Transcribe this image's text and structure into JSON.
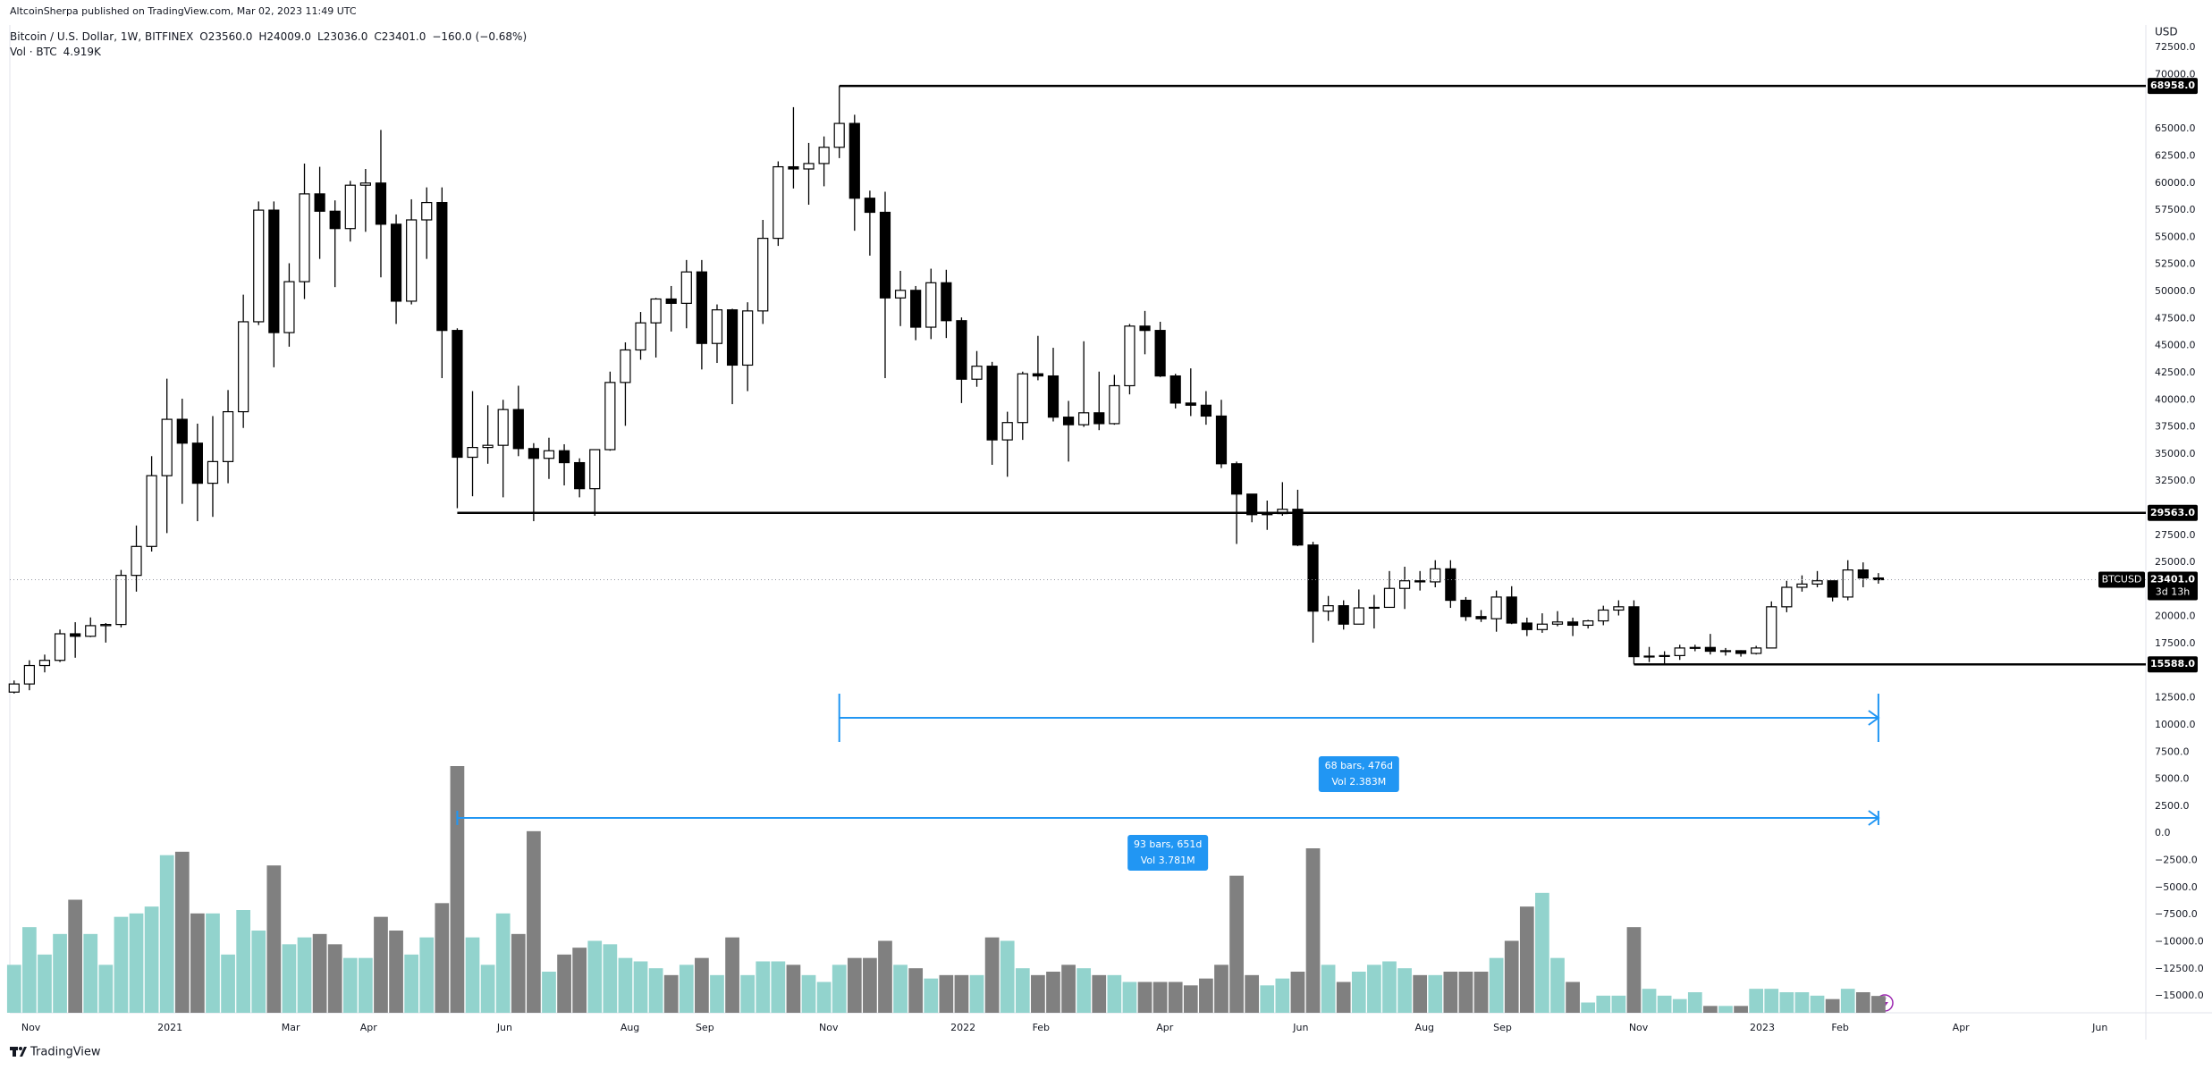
{
  "header": {
    "publisher": "AltcoinSherpa published on TradingView.com, Mar 02, 2023 11:49 UTC",
    "title": "Bitcoin / U.S. Dollar, 1W, BITFINEX",
    "ohlc_labels": [
      "O23560.0",
      "H24009.0",
      "L23036.0",
      "C23401.0",
      "−160.0 (−0.68%)"
    ],
    "volume_title": "Vol · BTC",
    "volume_label": "4.919K"
  },
  "chart_data": {
    "type": "candlestick",
    "symbol": "BTCUSD",
    "currency": "USD",
    "open": [
      13030,
      13780,
      15480,
      15960,
      18410,
      18180,
      19160,
      19270,
      23800,
      26470,
      33000,
      38200,
      36000,
      32300,
      34300,
      38900,
      47200,
      57500,
      46200,
      50900,
      59000,
      57400,
      55800,
      59800,
      60000,
      56200,
      49100,
      56600,
      58200,
      46400,
      34700,
      35600,
      35800,
      39100,
      35500,
      34600,
      35300,
      34200,
      31800,
      35400,
      41600,
      44600,
      47100,
      49300,
      48900,
      51800,
      45200,
      48300,
      43200,
      48200,
      54900,
      61500,
      61300,
      61800,
      63300,
      65500,
      58600,
      57300,
      49400,
      50100,
      46700,
      50800,
      47300,
      41900,
      43100,
      36300,
      37900,
      42400,
      42200,
      38400,
      37700,
      38800,
      37800,
      41300,
      46800,
      46400,
      42200,
      39700,
      39500,
      38500,
      34100,
      31300,
      29400,
      29500,
      29900,
      26600,
      20500,
      21000,
      19300,
      20800,
      20850,
      22600,
      23300,
      23200,
      24400,
      21500,
      20000,
      19800,
      21800,
      19400,
      18800,
      19300,
      19500,
      19200,
      19600,
      20600,
      20900,
      16300,
      16350,
      16400,
      17100,
      17150,
      16800,
      16850,
      16600,
      17100,
      20900,
      22700,
      23000,
      23300,
      21800,
      24300,
      23560
    ],
    "high": [
      14100,
      15970,
      16490,
      18800,
      19480,
      19920,
      19400,
      24300,
      28400,
      34800,
      41950,
      40100,
      37800,
      38500,
      40900,
      49700,
      58300,
      58300,
      52600,
      61800,
      61500,
      58400,
      60200,
      61300,
      64900,
      57100,
      58500,
      59600,
      59600,
      46600,
      40800,
      39500,
      40000,
      41300,
      36000,
      36500,
      35900,
      34600,
      35400,
      42600,
      45300,
      48100,
      49400,
      50500,
      52900,
      52900,
      48800,
      48400,
      49000,
      56600,
      62000,
      67000,
      63700,
      64300,
      68958,
      66300,
      59300,
      59200,
      51900,
      50500,
      52100,
      52000,
      47600,
      44500,
      43500,
      38900,
      42600,
      45900,
      44800,
      39900,
      45400,
      42600,
      42300,
      47000,
      48200,
      47200,
      42400,
      42900,
      40800,
      40000,
      34300,
      31300,
      30700,
      32400,
      31700,
      26900,
      21900,
      21500,
      22500,
      22000,
      24200,
      24600,
      24200,
      25200,
      25200,
      21800,
      20600,
      22400,
      22800,
      19900,
      20300,
      20500,
      19900,
      19700,
      21000,
      21500,
      21500,
      17200,
      16800,
      17400,
      17400,
      18400,
      17100,
      16900,
      17300,
      21400,
      23300,
      23800,
      24200,
      23300,
      25200,
      25000,
      24009
    ],
    "low": [
      12900,
      13200,
      14850,
      15800,
      16200,
      18100,
      17600,
      19000,
      22300,
      26000,
      27700,
      30400,
      28800,
      29200,
      32300,
      37400,
      46900,
      43000,
      44900,
      49300,
      53000,
      50400,
      54600,
      55500,
      51300,
      47000,
      48800,
      53000,
      42000,
      30000,
      31100,
      34100,
      31000,
      34800,
      28800,
      32700,
      32100,
      31000,
      29300,
      35300,
      37600,
      43700,
      43900,
      46300,
      46600,
      42800,
      43400,
      39600,
      40800,
      47000,
      54200,
      59500,
      58000,
      59700,
      62300,
      55600,
      53300,
      42000,
      46800,
      45500,
      45600,
      45700,
      39700,
      41200,
      34000,
      32900,
      36300,
      41800,
      38000,
      34300,
      37500,
      37200,
      37700,
      40500,
      44200,
      42100,
      39200,
      38500,
      37700,
      33700,
      26700,
      28700,
      28000,
      29300,
      26500,
      17600,
      19600,
      18800,
      19300,
      18900,
      20800,
      20700,
      22400,
      22700,
      20800,
      19600,
      19500,
      18600,
      19300,
      18200,
      18500,
      19100,
      18200,
      18900,
      19200,
      20100,
      15588,
      15800,
      15600,
      16000,
      16800,
      16500,
      16400,
      16300,
      16500,
      17100,
      20400,
      22300,
      22700,
      21400,
      21500,
      22700,
      23036
    ],
    "close": [
      13780,
      15480,
      15960,
      18410,
      18180,
      19160,
      19270,
      23800,
      26470,
      33000,
      38200,
      36000,
      32300,
      34300,
      38900,
      47200,
      57500,
      46200,
      50900,
      59000,
      57400,
      55800,
      59800,
      60000,
      56200,
      49100,
      56600,
      58200,
      46400,
      34700,
      35600,
      35800,
      39100,
      35500,
      34600,
      35300,
      34200,
      31800,
      35400,
      41600,
      44600,
      47100,
      49300,
      48900,
      51800,
      45200,
      48300,
      43200,
      48200,
      54900,
      61500,
      61300,
      61800,
      63300,
      65500,
      58600,
      57300,
      49400,
      50100,
      46700,
      50800,
      47300,
      41900,
      43100,
      36300,
      37900,
      42400,
      42200,
      38400,
      37700,
      38800,
      37800,
      41300,
      46800,
      46400,
      42200,
      39700,
      39500,
      38500,
      34100,
      31300,
      29400,
      29500,
      29900,
      26600,
      20500,
      21000,
      19300,
      20800,
      20850,
      22600,
      23300,
      23200,
      24400,
      21500,
      20000,
      19800,
      21800,
      19400,
      18800,
      19300,
      19500,
      19200,
      19600,
      20600,
      20900,
      16300,
      16350,
      16400,
      17100,
      17150,
      16800,
      16850,
      16600,
      17100,
      20900,
      22700,
      23000,
      23300,
      21800,
      24300,
      23560,
      23401
    ],
    "volume": [
      14000,
      25000,
      17000,
      23000,
      33000,
      23000,
      14000,
      28000,
      29000,
      31000,
      46000,
      47000,
      29000,
      29000,
      17000,
      30000,
      24000,
      43000,
      20000,
      22000,
      23000,
      20000,
      16000,
      16000,
      28000,
      24000,
      17000,
      22000,
      32000,
      72000,
      22000,
      14000,
      29000,
      23000,
      53000,
      12000,
      17000,
      19000,
      21000,
      20000,
      16000,
      15000,
      13000,
      11000,
      14000,
      16000,
      11000,
      22000,
      11000,
      15000,
      15000,
      14000,
      11000,
      9000,
      14000,
      16000,
      16000,
      21000,
      14000,
      13000,
      10000,
      11000,
      11000,
      11000,
      22000,
      21000,
      13000,
      11000,
      12000,
      14000,
      13000,
      11000,
      11000,
      9000,
      9000,
      9000,
      9000,
      8000,
      10000,
      14000,
      40000,
      11000,
      8000,
      10000,
      12000,
      48000,
      14000,
      9000,
      12000,
      14000,
      15000,
      13000,
      11000,
      11000,
      12000,
      12000,
      12000,
      16000,
      21000,
      31000,
      35000,
      16000,
      9000,
      3000,
      5000,
      5000,
      25000,
      7000,
      5000,
      4000,
      6000,
      2000,
      2000,
      2000,
      7000,
      7000,
      6000,
      6000,
      5000,
      4000,
      7000,
      6000,
      4919
    ],
    "up_color": "#ffffff",
    "down_color": "#000000",
    "border_color": "#000000",
    "volume_up_color": "#92d3cd",
    "volume_down_color": "#808080",
    "xlim": [
      -0.28,
      139.5
    ],
    "xticks": [
      {
        "value": 1.1,
        "label": "Nov"
      },
      {
        "value": 10.2,
        "label": "2021"
      },
      {
        "value": 18.1,
        "label": "Mar"
      },
      {
        "value": 23.2,
        "label": "Apr"
      },
      {
        "value": 32.1,
        "label": "Jun"
      },
      {
        "value": 40.3,
        "label": "Aug"
      },
      {
        "value": 45.2,
        "label": "Sep"
      },
      {
        "value": 53.3,
        "label": "Nov"
      },
      {
        "value": 62.1,
        "label": "2022"
      },
      {
        "value": 67.2,
        "label": "Feb"
      },
      {
        "value": 75.3,
        "label": "Apr"
      },
      {
        "value": 84.2,
        "label": "Jun"
      },
      {
        "value": 92.3,
        "label": "Aug"
      },
      {
        "value": 97.4,
        "label": "Sep"
      },
      {
        "value": 106.3,
        "label": "Nov"
      },
      {
        "value": 114.4,
        "label": "2023"
      },
      {
        "value": 119.5,
        "label": "Feb"
      },
      {
        "value": 127.4,
        "label": "Apr"
      },
      {
        "value": 136.5,
        "label": "Jun"
      }
    ],
    "ylim": [
      -16560,
      74580
    ],
    "yticks": [
      {
        "value": 72500,
        "label": "72500.0"
      },
      {
        "value": 70000,
        "label": "70000.0"
      },
      {
        "value": 65000,
        "label": "65000.0"
      },
      {
        "value": 62500,
        "label": "62500.0"
      },
      {
        "value": 60000,
        "label": "60000.0"
      },
      {
        "value": 57500,
        "label": "57500.0"
      },
      {
        "value": 55000,
        "label": "55000.0"
      },
      {
        "value": 52500,
        "label": "52500.0"
      },
      {
        "value": 50000,
        "label": "50000.0"
      },
      {
        "value": 47500,
        "label": "47500.0"
      },
      {
        "value": 45000,
        "label": "45000.0"
      },
      {
        "value": 42500,
        "label": "42500.0"
      },
      {
        "value": 40000,
        "label": "40000.0"
      },
      {
        "value": 37500,
        "label": "37500.0"
      },
      {
        "value": 35000,
        "label": "35000.0"
      },
      {
        "value": 32500,
        "label": "32500.0"
      },
      {
        "value": 27500,
        "label": "27500.0"
      },
      {
        "value": 25000,
        "label": "25000.0"
      },
      {
        "value": 20000,
        "label": "20000.0"
      },
      {
        "value": 17500,
        "label": "17500.0"
      },
      {
        "value": 12500,
        "label": "12500.0"
      },
      {
        "value": 10000,
        "label": "10000.0"
      },
      {
        "value": 7500,
        "label": "7500.0"
      },
      {
        "value": 5000,
        "label": "5000.0"
      },
      {
        "value": 2500,
        "label": "2500.0"
      },
      {
        "value": 0,
        "label": "0.0"
      },
      {
        "value": -2500,
        "label": "−2500.0"
      },
      {
        "value": -5000,
        "label": "−5000.0"
      },
      {
        "value": -7500,
        "label": "−7500.0"
      },
      {
        "value": -10000,
        "label": "−10000.0"
      },
      {
        "value": -12500,
        "label": "−12500.0"
      },
      {
        "value": -15000,
        "label": "−15000.0"
      }
    ],
    "last_price_label": "23401.0",
    "countdown": "3d 13h",
    "levels": [
      {
        "value": 68958,
        "label": "68958.0",
        "start": 54
      },
      {
        "value": 29563,
        "label": "29563.0",
        "start": 29
      },
      {
        "value": 15588,
        "label": "15588.0",
        "start": 106
      }
    ],
    "measures": [
      {
        "start": 54,
        "end": 122,
        "text": [
          "68 bars, 476d",
          "Vol 2.383M"
        ]
      },
      {
        "start": 29,
        "end": 122,
        "text": [
          "93 bars, 651d",
          "Vol 3.781M"
        ]
      }
    ]
  },
  "footer": {
    "brand": "TradingView"
  }
}
